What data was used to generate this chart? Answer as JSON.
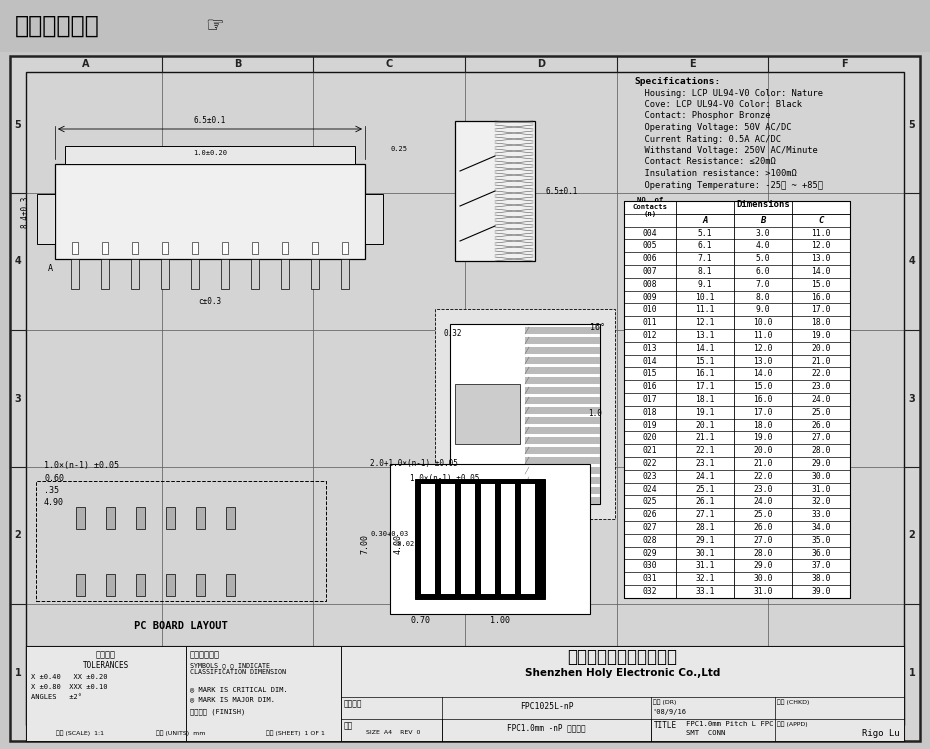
{
  "title": "在线图纸下载",
  "bg_color": "#c8c8c8",
  "drawing_bg": "#d8d8d8",
  "border_color": "#000000",
  "specs": [
    "Specifications:",
    "  Housing: LCP UL94-V0 Color: Nature",
    "  Cove: LCP UL94-V0 Color: Black",
    "  Contact: Phosphor Bronze",
    "  Operating Voltage: 50V AC/DC",
    "  Current Rating: 0.5A AC/DC",
    "  Withstand Voltage: 250V AC/Minute",
    "  Contact Resistance: ≤20mΩ",
    "  Insulation resistance: >100mΩ",
    "  Operating Temperature: -25℃ ~ +85℃"
  ],
  "table_data": [
    [
      "004",
      "5.1",
      "3.0",
      "11.0"
    ],
    [
      "005",
      "6.1",
      "4.0",
      "12.0"
    ],
    [
      "006",
      "7.1",
      "5.0",
      "13.0"
    ],
    [
      "007",
      "8.1",
      "6.0",
      "14.0"
    ],
    [
      "008",
      "9.1",
      "7.0",
      "15.0"
    ],
    [
      "009",
      "10.1",
      "8.0",
      "16.0"
    ],
    [
      "010",
      "11.1",
      "9.0",
      "17.0"
    ],
    [
      "011",
      "12.1",
      "10.0",
      "18.0"
    ],
    [
      "012",
      "13.1",
      "11.0",
      "19.0"
    ],
    [
      "013",
      "14.1",
      "12.0",
      "20.0"
    ],
    [
      "014",
      "15.1",
      "13.0",
      "21.0"
    ],
    [
      "015",
      "16.1",
      "14.0",
      "22.0"
    ],
    [
      "016",
      "17.1",
      "15.0",
      "23.0"
    ],
    [
      "017",
      "18.1",
      "16.0",
      "24.0"
    ],
    [
      "018",
      "19.1",
      "17.0",
      "25.0"
    ],
    [
      "019",
      "20.1",
      "18.0",
      "26.0"
    ],
    [
      "020",
      "21.1",
      "19.0",
      "27.0"
    ],
    [
      "021",
      "22.1",
      "20.0",
      "28.0"
    ],
    [
      "022",
      "23.1",
      "21.0",
      "29.0"
    ],
    [
      "023",
      "24.1",
      "22.0",
      "30.0"
    ],
    [
      "024",
      "25.1",
      "23.0",
      "31.0"
    ],
    [
      "025",
      "26.1",
      "24.0",
      "32.0"
    ],
    [
      "026",
      "27.1",
      "25.0",
      "33.0"
    ],
    [
      "027",
      "28.1",
      "26.0",
      "34.0"
    ],
    [
      "028",
      "29.1",
      "27.0",
      "35.0"
    ],
    [
      "029",
      "30.1",
      "28.0",
      "36.0"
    ],
    [
      "030",
      "31.1",
      "29.0",
      "37.0"
    ],
    [
      "031",
      "32.1",
      "30.0",
      "38.0"
    ],
    [
      "032",
      "33.1",
      "31.0",
      "39.0"
    ]
  ],
  "company_cn": "深圳市宏利电子有限公司",
  "company_en": "Shenzhen Holy Electronic Co.,Ltd",
  "tolerances_title": "一般公差",
  "tolerances_sub": "TOLERANCES",
  "tolerances_lines": [
    "X ±0.40   XX ±0.20",
    "X ±0.80  XXX ±0.10",
    "ANGLES   ±2°"
  ],
  "dim_check_title": "检验尺寸标示",
  "dim_check_note1": "◎ MARK IS CRITICAL DIM.",
  "dim_check_note2": "◎ MARK IS MAJOR DIM.",
  "finish_label": "表面处理 (FINISH)",
  "proj_num_label": "工程图号",
  "proj_num": "FPC1025L-nP",
  "prod_name_label": "品名",
  "prod_name": "FPC1.0mm -nP 立贴带锁",
  "drawn_by": "'08/9/16",
  "approved_by": "Rigo Lu",
  "col_labels": [
    "A",
    "B",
    "C",
    "D",
    "E",
    "F"
  ],
  "row_labels": [
    "1",
    "2",
    "3",
    "4",
    "5"
  ]
}
